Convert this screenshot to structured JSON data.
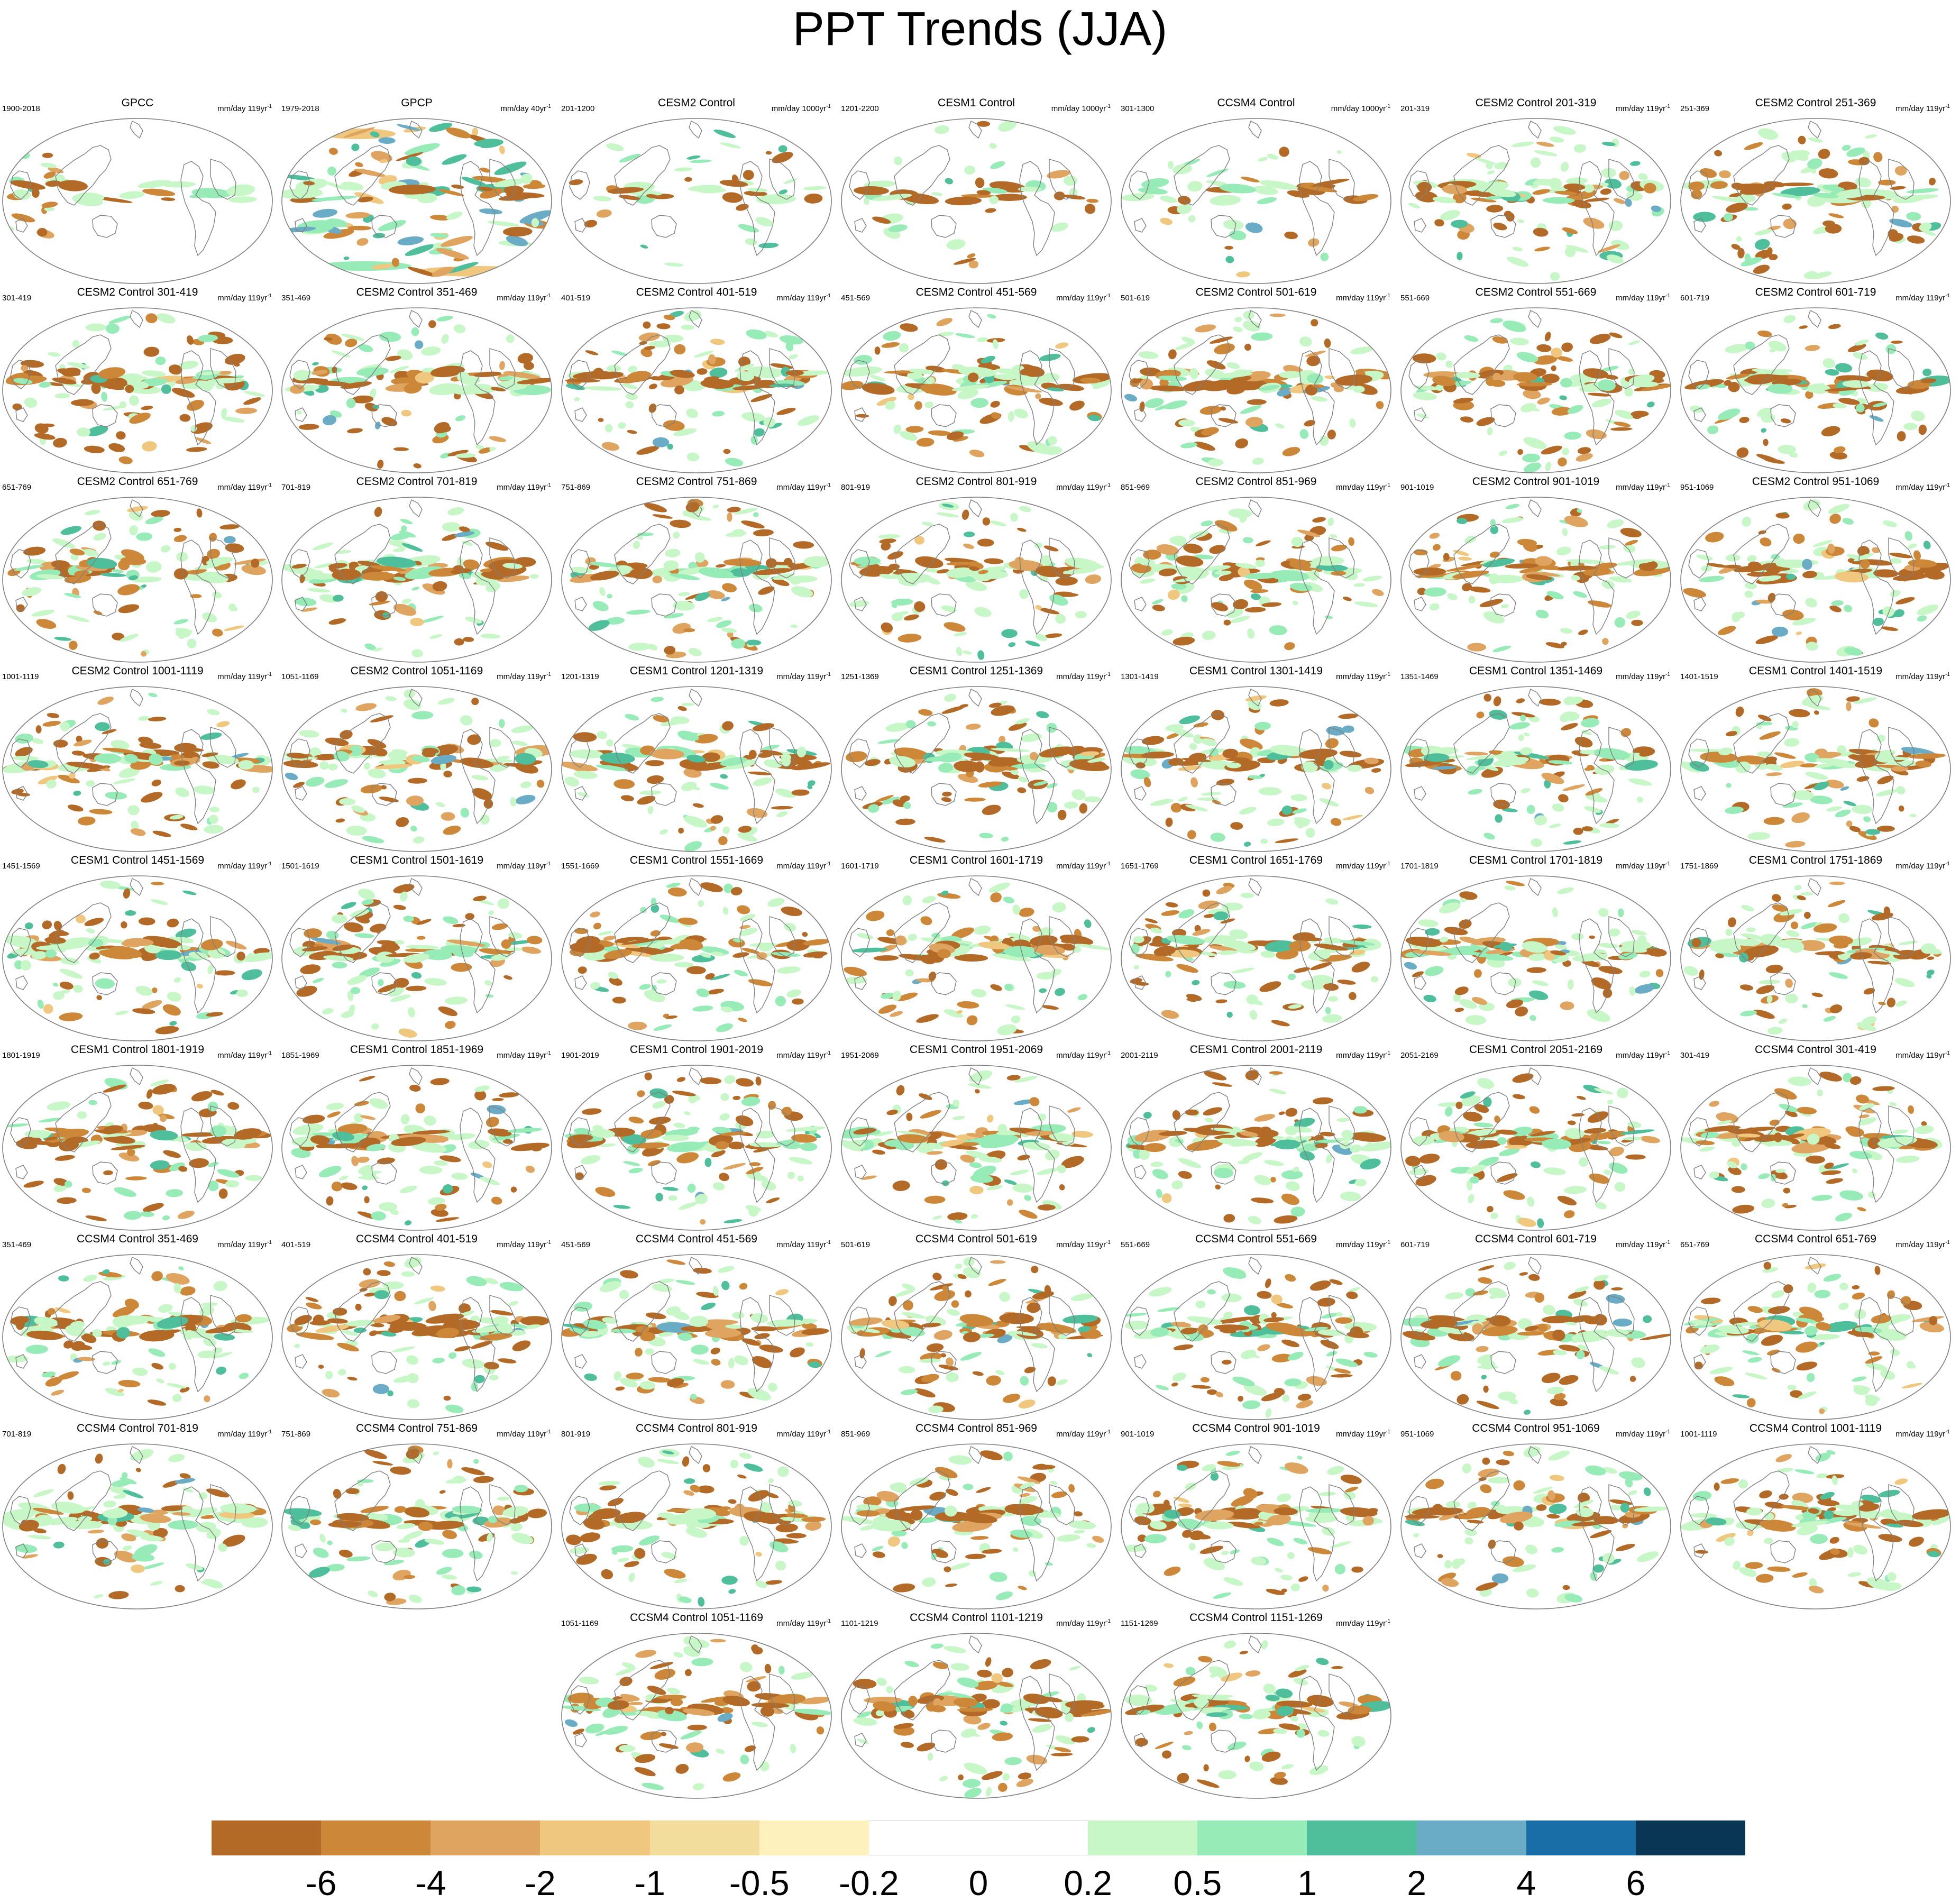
{
  "figure": {
    "title": "PPT Trends (JJA)"
  },
  "colors": {
    "brown": [
      "#b36a26",
      "#cc8838",
      "#dea460",
      "#f0c77f",
      "#f3dd9c",
      "#fdf2bd"
    ],
    "green": [
      "#c7f7c7",
      "#97ebb7",
      "#4fbe9a",
      "#6aabc6",
      "#1a6ea8",
      "#0a3655"
    ],
    "coast": "#7f7f7f"
  },
  "colorbar": {
    "labels": [
      "-6",
      "-4",
      "-2",
      "-1",
      "-0.5",
      "-0.2",
      "0",
      "0.2",
      "0.5",
      "1",
      "2",
      "4",
      "6"
    ],
    "fills": [
      "#b36a26",
      "#cc8838",
      "#dea460",
      "#f0c77f",
      "#f3dd9c",
      "#fdf2bd",
      "#ffffff",
      "#ffffff",
      "#c7f7c7",
      "#97ebb7",
      "#4fbe9a",
      "#6aabc6",
      "#1a6ea8",
      "#0a3655"
    ]
  },
  "panels": [
    {
      "title": "GPCC",
      "left": "1900-2018",
      "units": "mm/day 119yr",
      "sup": "-1"
    },
    {
      "title": "GPCP",
      "left": "1979-2018",
      "units": "mm/day 40yr",
      "sup": "-1"
    },
    {
      "title": "CESM2 Control",
      "left": "201-1200",
      "units": "mm/day 1000yr",
      "sup": "-1"
    },
    {
      "title": "CESM1 Control",
      "left": "1201-2200",
      "units": "mm/day 1000yr",
      "sup": "-1"
    },
    {
      "title": "CCSM4 Control",
      "left": "301-1300",
      "units": "mm/day 1000yr",
      "sup": "-1"
    },
    {
      "title": "CESM2 Control 201-319",
      "left": "201-319",
      "units": "mm/day 119yr",
      "sup": "-1"
    },
    {
      "title": "CESM2 Control 251-369",
      "left": "251-369",
      "units": "mm/day 119yr",
      "sup": "-1"
    },
    {
      "title": "CESM2 Control 301-419",
      "left": "301-419",
      "units": "mm/day 119yr",
      "sup": "-1"
    },
    {
      "title": "CESM2 Control 351-469",
      "left": "351-469",
      "units": "mm/day 119yr",
      "sup": "-1"
    },
    {
      "title": "CESM2 Control 401-519",
      "left": "401-519",
      "units": "mm/day 119yr",
      "sup": "-1"
    },
    {
      "title": "CESM2 Control 451-569",
      "left": "451-569",
      "units": "mm/day 119yr",
      "sup": "-1"
    },
    {
      "title": "CESM2 Control 501-619",
      "left": "501-619",
      "units": "mm/day 119yr",
      "sup": "-1"
    },
    {
      "title": "CESM2 Control 551-669",
      "left": "551-669",
      "units": "mm/day 119yr",
      "sup": "-1"
    },
    {
      "title": "CESM2 Control 601-719",
      "left": "601-719",
      "units": "mm/day 119yr",
      "sup": "-1"
    },
    {
      "title": "CESM2 Control 651-769",
      "left": "651-769",
      "units": "mm/day 119yr",
      "sup": "-1"
    },
    {
      "title": "CESM2 Control 701-819",
      "left": "701-819",
      "units": "mm/day 119yr",
      "sup": "-1"
    },
    {
      "title": "CESM2 Control 751-869",
      "left": "751-869",
      "units": "mm/day 119yr",
      "sup": "-1"
    },
    {
      "title": "CESM2 Control 801-919",
      "left": "801-919",
      "units": "mm/day 119yr",
      "sup": "-1"
    },
    {
      "title": "CESM2 Control 851-969",
      "left": "851-969",
      "units": "mm/day 119yr",
      "sup": "-1"
    },
    {
      "title": "CESM2 Control 901-1019",
      "left": "901-1019",
      "units": "mm/day 119yr",
      "sup": "-1"
    },
    {
      "title": "CESM2 Control 951-1069",
      "left": "951-1069",
      "units": "mm/day 119yr",
      "sup": "-1"
    },
    {
      "title": "CESM2 Control 1001-1119",
      "left": "1001-1119",
      "units": "mm/day 119yr",
      "sup": "-1"
    },
    {
      "title": "CESM2 Control 1051-1169",
      "left": "1051-1169",
      "units": "mm/day 119yr",
      "sup": "-1"
    },
    {
      "title": "CESM1 Control 1201-1319",
      "left": "1201-1319",
      "units": "mm/day 119yr",
      "sup": "-1"
    },
    {
      "title": "CESM1 Control 1251-1369",
      "left": "1251-1369",
      "units": "mm/day 119yr",
      "sup": "-1"
    },
    {
      "title": "CESM1 Control 1301-1419",
      "left": "1301-1419",
      "units": "mm/day 119yr",
      "sup": "-1"
    },
    {
      "title": "CESM1 Control 1351-1469",
      "left": "1351-1469",
      "units": "mm/day 119yr",
      "sup": "-1"
    },
    {
      "title": "CESM1 Control 1401-1519",
      "left": "1401-1519",
      "units": "mm/day 119yr",
      "sup": "-1"
    },
    {
      "title": "CESM1 Control 1451-1569",
      "left": "1451-1569",
      "units": "mm/day 119yr",
      "sup": "-1"
    },
    {
      "title": "CESM1 Control 1501-1619",
      "left": "1501-1619",
      "units": "mm/day 119yr",
      "sup": "-1"
    },
    {
      "title": "CESM1 Control 1551-1669",
      "left": "1551-1669",
      "units": "mm/day 119yr",
      "sup": "-1"
    },
    {
      "title": "CESM1 Control 1601-1719",
      "left": "1601-1719",
      "units": "mm/day 119yr",
      "sup": "-1"
    },
    {
      "title": "CESM1 Control 1651-1769",
      "left": "1651-1769",
      "units": "mm/day 119yr",
      "sup": "-1"
    },
    {
      "title": "CESM1 Control 1701-1819",
      "left": "1701-1819",
      "units": "mm/day 119yr",
      "sup": "-1"
    },
    {
      "title": "CESM1 Control 1751-1869",
      "left": "1751-1869",
      "units": "mm/day 119yr",
      "sup": "-1"
    },
    {
      "title": "CESM1 Control 1801-1919",
      "left": "1801-1919",
      "units": "mm/day 119yr",
      "sup": "-1"
    },
    {
      "title": "CESM1 Control 1851-1969",
      "left": "1851-1969",
      "units": "mm/day 119yr",
      "sup": "-1"
    },
    {
      "title": "CESM1 Control 1901-2019",
      "left": "1901-2019",
      "units": "mm/day 119yr",
      "sup": "-1"
    },
    {
      "title": "CESM1 Control 1951-2069",
      "left": "1951-2069",
      "units": "mm/day 119yr",
      "sup": "-1"
    },
    {
      "title": "CESM1 Control 2001-2119",
      "left": "2001-2119",
      "units": "mm/day 119yr",
      "sup": "-1"
    },
    {
      "title": "CESM1 Control 2051-2169",
      "left": "2051-2169",
      "units": "mm/day 119yr",
      "sup": "-1"
    },
    {
      "title": "CCSM4 Control 301-419",
      "left": "301-419",
      "units": "mm/day 119yr",
      "sup": "-1"
    },
    {
      "title": "CCSM4 Control 351-469",
      "left": "351-469",
      "units": "mm/day 119yr",
      "sup": "-1"
    },
    {
      "title": "CCSM4 Control 401-519",
      "left": "401-519",
      "units": "mm/day 119yr",
      "sup": "-1"
    },
    {
      "title": "CCSM4 Control 451-569",
      "left": "451-569",
      "units": "mm/day 119yr",
      "sup": "-1"
    },
    {
      "title": "CCSM4 Control 501-619",
      "left": "501-619",
      "units": "mm/day 119yr",
      "sup": "-1"
    },
    {
      "title": "CCSM4 Control 551-669",
      "left": "551-669",
      "units": "mm/day 119yr",
      "sup": "-1"
    },
    {
      "title": "CCSM4 Control 601-719",
      "left": "601-719",
      "units": "mm/day 119yr",
      "sup": "-1"
    },
    {
      "title": "CCSM4 Control 651-769",
      "left": "651-769",
      "units": "mm/day 119yr",
      "sup": "-1"
    },
    {
      "title": "CCSM4 Control 701-819",
      "left": "701-819",
      "units": "mm/day 119yr",
      "sup": "-1"
    },
    {
      "title": "CCSM4 Control 751-869",
      "left": "751-869",
      "units": "mm/day 119yr",
      "sup": "-1"
    },
    {
      "title": "CCSM4 Control 801-919",
      "left": "801-919",
      "units": "mm/day 119yr",
      "sup": "-1"
    },
    {
      "title": "CCSM4 Control 851-969",
      "left": "851-969",
      "units": "mm/day 119yr",
      "sup": "-1"
    },
    {
      "title": "CCSM4 Control 901-1019",
      "left": "901-1019",
      "units": "mm/day 119yr",
      "sup": "-1"
    },
    {
      "title": "CCSM4 Control 951-1069",
      "left": "951-1069",
      "units": "mm/day 119yr",
      "sup": "-1"
    },
    {
      "title": "CCSM4 Control 1001-1119",
      "left": "1001-1119",
      "units": "mm/day 119yr",
      "sup": "-1"
    },
    {
      "title": "CCSM4 Control 1051-1169",
      "left": "1051-1169",
      "units": "mm/day 119yr",
      "sup": "-1"
    },
    {
      "title": "CCSM4 Control 1101-1219",
      "left": "1101-1219",
      "units": "mm/day 119yr",
      "sup": "-1"
    },
    {
      "title": "CCSM4 Control 1151-1269",
      "left": "1151-1269",
      "units": "mm/day 119yr",
      "sup": "-1"
    }
  ]
}
